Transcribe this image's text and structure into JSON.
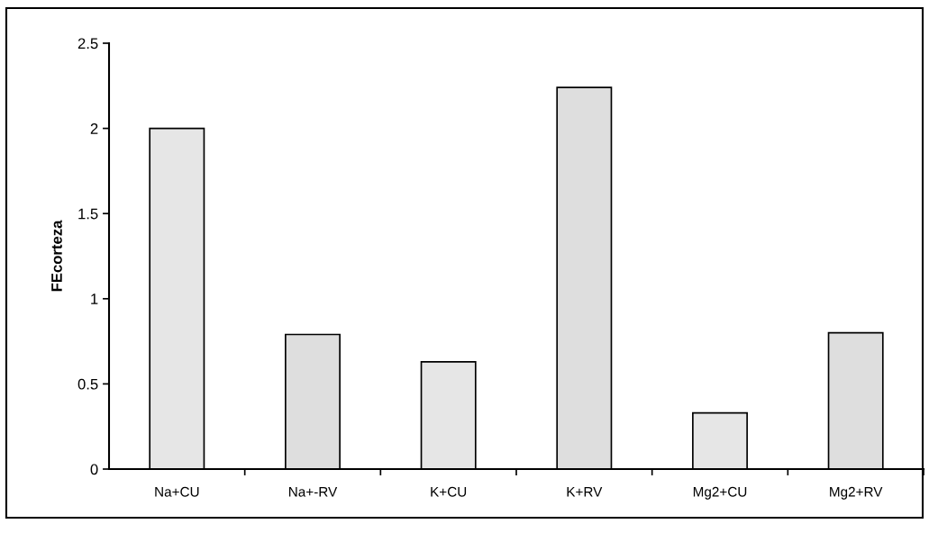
{
  "chart_data": {
    "type": "bar",
    "ylabel": "FEcorteza",
    "categories": [
      "Na+CU",
      "Na+-RV",
      "K+CU",
      "K+RV",
      "Mg2+CU",
      "Mg2+RV"
    ],
    "values": [
      2.0,
      0.79,
      0.63,
      2.24,
      0.33,
      0.8
    ],
    "colors": [
      "#e6e6e6",
      "#dedede",
      "#e6e6e6",
      "#dedede",
      "#e6e6e6",
      "#dedede"
    ],
    "ylim": [
      0,
      2.5
    ],
    "yticks": [
      0,
      0.5,
      1,
      {
        "value": 1.5,
        "label": "1.5"
      },
      2,
      2.5
    ],
    "grid": false,
    "legend": false
  }
}
